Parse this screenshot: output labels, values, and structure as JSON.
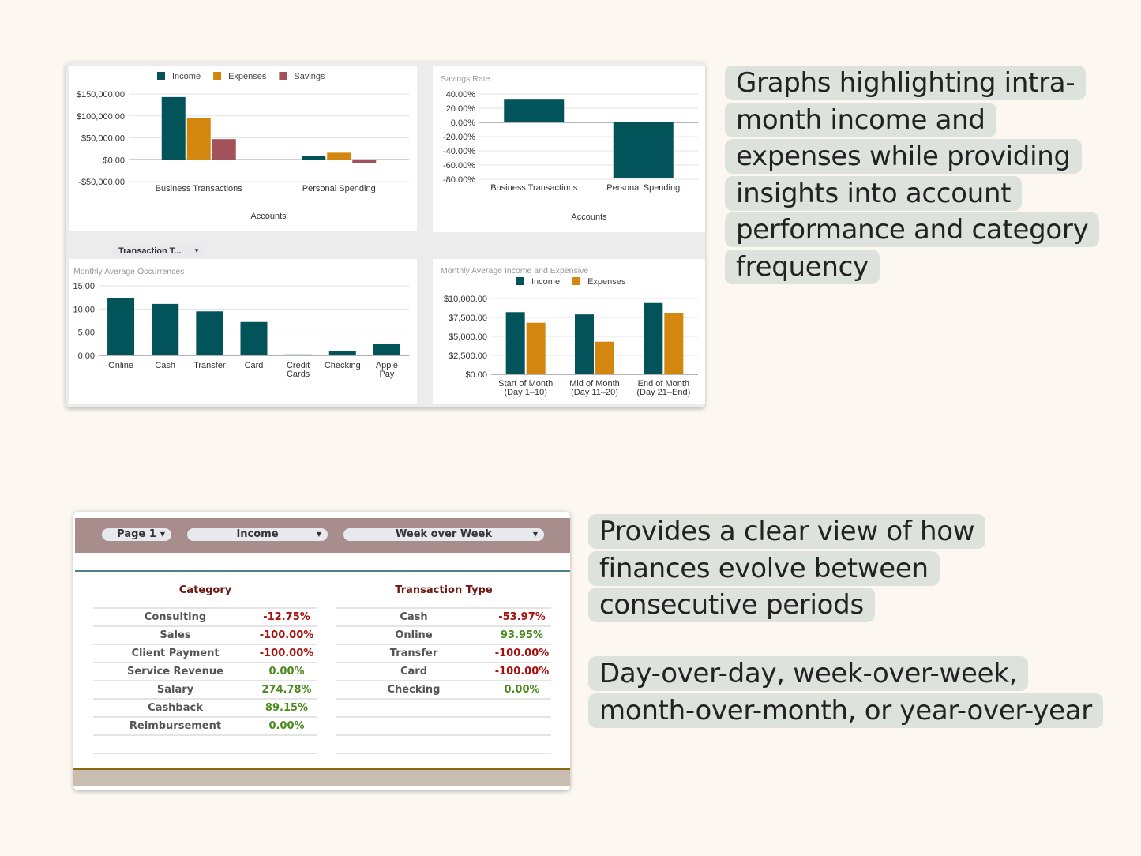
{
  "colors": {
    "income": "#02535a",
    "expenses": "#d3870f",
    "savings": "#a3525a",
    "negative": "#a8100c",
    "positive": "#4a8a1e",
    "callout_bg": "#dde2dc"
  },
  "filter_chip": {
    "label": "Transaction T...",
    "icon": "caret-down-icon"
  },
  "chart_data": [
    {
      "type": "bar",
      "title": "",
      "xlabel": "Accounts",
      "ylabel": "",
      "categories": [
        "Business Transactions",
        "Personal Spending"
      ],
      "series": [
        {
          "name": "Income",
          "values": [
            143000,
            9000
          ]
        },
        {
          "name": "Expenses",
          "values": [
            96000,
            16000
          ]
        },
        {
          "name": "Savings",
          "values": [
            47000,
            -7000
          ]
        }
      ],
      "ylim": [
        -50000,
        150000
      ],
      "ytick_values": [
        -50000,
        0,
        50000,
        100000,
        150000
      ],
      "ytick_labels": [
        "-$50,000.00",
        "$0.00",
        "$50,000.00",
        "$100,000.00",
        "$150,000.00"
      ],
      "legend": "top",
      "grid": true
    },
    {
      "type": "bar",
      "title": "Savings Rate",
      "xlabel": "Accounts",
      "ylabel": "",
      "categories": [
        "Business Transactions",
        "Personal Spending"
      ],
      "series": [
        {
          "values": [
            32,
            -78
          ]
        }
      ],
      "ylim": [
        -80,
        40
      ],
      "ytick_values": [
        -80,
        -60,
        -40,
        -20,
        0,
        20,
        40
      ],
      "ytick_labels": [
        "-80.00%",
        "-60.00%",
        "-40.00%",
        "-20.00%",
        "0.00%",
        "20.00%",
        "40.00%"
      ],
      "legend": "none",
      "grid": true
    },
    {
      "type": "bar",
      "title": "Monthly Average Occurrences",
      "xlabel": "",
      "ylabel": "",
      "categories": [
        [
          "Online"
        ],
        [
          "Cash"
        ],
        [
          "Transfer"
        ],
        [
          "Card"
        ],
        [
          "Credit",
          "Cards"
        ],
        [
          "Checking"
        ],
        [
          "Apple",
          "Pay"
        ]
      ],
      "series": [
        {
          "values": [
            12.3,
            11.1,
            9.5,
            7.2,
            0.2,
            1.0,
            2.4
          ]
        }
      ],
      "ylim": [
        0,
        15
      ],
      "ytick_values": [
        0,
        5,
        10,
        15
      ],
      "ytick_labels": [
        "0.00",
        "5.00",
        "10.00",
        "15.00"
      ],
      "legend": "none",
      "grid": true
    },
    {
      "type": "bar",
      "title": "Monthly Average Income and Expensive",
      "xlabel": "",
      "ylabel": "",
      "categories": [
        [
          "Start of Month",
          "(Day 1–10)"
        ],
        [
          "Mid of Month",
          "(Day 11–20)"
        ],
        [
          "End of Month",
          "(Day 21–End)"
        ]
      ],
      "series": [
        {
          "name": "Income",
          "values": [
            8200,
            7900,
            9400
          ]
        },
        {
          "name": "Expenses",
          "values": [
            6800,
            4300,
            8100
          ]
        }
      ],
      "ylim": [
        0,
        10000
      ],
      "ytick_values": [
        0,
        2500,
        5000,
        7500,
        10000
      ],
      "ytick_labels": [
        "$0.00",
        "$2,500.00",
        "$5,000.00",
        "$7,500.00",
        "$10,000.00"
      ],
      "legend": "top",
      "grid": true
    }
  ],
  "table_card": {
    "dropdowns": [
      {
        "value": "Page 1"
      },
      {
        "value": "Income"
      },
      {
        "value": "Week over Week"
      }
    ],
    "category_header": "Category",
    "type_header": "Transaction Type",
    "category_rows": [
      {
        "name": "Consulting",
        "value": "-12.75%",
        "trend": "negative"
      },
      {
        "name": "Sales",
        "value": "-100.00%",
        "trend": "negative"
      },
      {
        "name": "Client Payment",
        "value": "-100.00%",
        "trend": "negative"
      },
      {
        "name": "Service Revenue",
        "value": "0.00%",
        "trend": "positive"
      },
      {
        "name": "Salary",
        "value": "274.78%",
        "trend": "positive"
      },
      {
        "name": "Cashback",
        "value": "89.15%",
        "trend": "positive"
      },
      {
        "name": "Reimbursement",
        "value": "0.00%",
        "trend": "positive"
      }
    ],
    "type_rows": [
      {
        "name": "Cash",
        "value": "-53.97%",
        "trend": "negative"
      },
      {
        "name": "Online",
        "value": "93.95%",
        "trend": "positive"
      },
      {
        "name": "Transfer",
        "value": "-100.00%",
        "trend": "negative"
      },
      {
        "name": "Card",
        "value": "-100.00%",
        "trend": "negative"
      },
      {
        "name": "Checking",
        "value": "0.00%",
        "trend": "positive"
      }
    ]
  },
  "callouts": [
    {
      "lines": [
        "Graphs highlighting intra-",
        "month income and",
        "expenses while providing",
        "insights into account",
        "performance and category",
        "frequency"
      ]
    },
    {
      "lines": [
        "Provides a clear view of how",
        "finances evolve between",
        "consecutive periods"
      ]
    },
    {
      "lines": [
        "Day-over-day, week-over-week,",
        "month-over-month, or year-over-year"
      ]
    }
  ]
}
